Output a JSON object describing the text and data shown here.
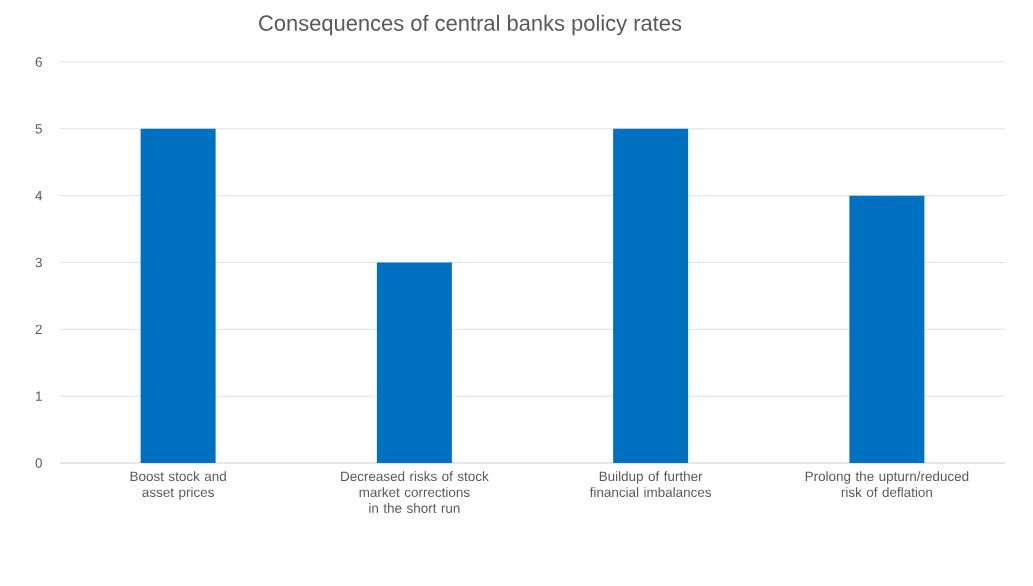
{
  "chart_data": {
    "type": "bar",
    "title": "Consequences of central banks policy rates",
    "categories": [
      "Boost stock and asset prices",
      "Decreased risks of stock market corrections in the short run",
      "Buildup of further financial imbalances",
      "Prolong the upturn/reduced risk of deflation"
    ],
    "values": [
      5,
      3,
      5,
      4
    ],
    "color": "#0070c0",
    "ylim": [
      0,
      6
    ],
    "yticks": [
      0,
      1,
      2,
      3,
      4,
      5,
      6
    ],
    "grid": "y"
  }
}
